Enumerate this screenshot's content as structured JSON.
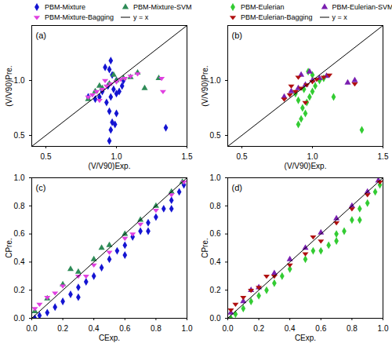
{
  "chart_data": [
    {
      "type": "scatter",
      "title": "(a)",
      "xlabel": "(V/V90)Exp.",
      "ylabel": "(V/V90)Pre.",
      "xlim": [
        0.4,
        1.5
      ],
      "ylim": [
        0.4,
        1.5
      ],
      "xticks": [
        0.5,
        {
          "value": 1.0,
          "label": "1.0"
        },
        1.5
      ],
      "yticks": [
        0.5,
        {
          "value": 1.0,
          "label": "1.0"
        }
      ],
      "legend": "top",
      "series": [
        {
          "name": "PBM-Mixture",
          "type": "scatter",
          "color": "#1414d2",
          "marker": "diamond",
          "x": [
            0.95,
            0.96,
            0.97,
            0.95,
            0.93,
            0.96,
            1.0,
            0.98,
            0.94,
            1.0,
            0.97,
            0.95,
            0.96,
            1.02,
            1.04,
            0.9,
            0.88,
            0.85,
            1.0,
            0.99,
            1.35,
            0.92,
            1.05,
            0.8
          ],
          "values": [
            0.45,
            0.55,
            0.62,
            0.72,
            0.8,
            0.85,
            0.88,
            0.92,
            0.95,
            1.0,
            1.05,
            1.1,
            1.18,
            0.9,
            0.95,
            0.9,
            0.85,
            0.83,
            0.7,
            0.6,
            0.57,
            1.12,
            1.0,
            0.85
          ]
        },
        {
          "name": "PBM-Mixture-SVM",
          "type": "scatter",
          "color": "#2e8b57",
          "marker": "triangle",
          "x": [
            0.85,
            0.9,
            0.95,
            1.0,
            1.05,
            1.1,
            1.15,
            1.3,
            1.2,
            0.8,
            0.88,
            0.98
          ],
          "values": [
            0.9,
            0.93,
            0.97,
            1.0,
            1.02,
            1.03,
            1.07,
            1.02,
            0.93,
            0.83,
            0.95,
            1.05
          ]
        },
        {
          "name": "PBM-Mixture-Bagging",
          "type": "scatter",
          "color": "#e040e0",
          "marker": "triangle-down",
          "x": [
            0.8,
            0.83,
            0.86,
            0.9,
            0.93,
            0.96,
            1.0,
            1.03,
            1.06,
            1.1,
            1.15,
            1.33,
            1.32,
            0.88,
            0.92
          ],
          "values": [
            0.85,
            0.87,
            0.9,
            0.92,
            0.95,
            0.97,
            0.99,
            1.01,
            1.02,
            1.04,
            1.06,
            0.9,
            1.02,
            0.82,
            1.0
          ]
        },
        {
          "name": "y = x",
          "type": "line",
          "color": "#000000",
          "line_style": "solid",
          "x": [
            0.4,
            1.5
          ],
          "values": [
            0.4,
            1.5
          ]
        }
      ]
    },
    {
      "type": "scatter",
      "title": "(b)",
      "xlabel": "(V/V90)Exp.",
      "ylabel": "(V/V90)Pre.",
      "xlim": [
        0.4,
        1.5
      ],
      "ylim": [
        0.4,
        1.5
      ],
      "xticks": [
        0.5,
        {
          "value": 1.0,
          "label": "1.0"
        },
        1.5
      ],
      "yticks": [
        0.5,
        {
          "value": 1.0,
          "label": "1.0"
        }
      ],
      "legend": "top",
      "series": [
        {
          "name": "PBM-Eulerian",
          "type": "scatter",
          "color": "#33cc33",
          "marker": "diamond",
          "x": [
            0.9,
            0.92,
            0.95,
            0.93,
            0.96,
            0.9,
            0.98,
            1.0,
            0.94,
            1.02,
            1.05,
            1.0,
            0.97,
            1.15,
            1.35,
            0.88,
            1.08
          ],
          "values": [
            0.6,
            0.65,
            0.7,
            0.75,
            0.8,
            0.82,
            0.85,
            0.9,
            0.92,
            0.95,
            1.0,
            1.05,
            1.08,
            0.85,
            0.55,
            0.88,
            1.02
          ]
        },
        {
          "name": "PBM-Eulerian-SVM",
          "type": "scatter",
          "color": "#7a1fb0",
          "marker": "triangle",
          "x": [
            0.85,
            0.9,
            0.95,
            1.0,
            1.05,
            1.1,
            1.3,
            1.25,
            0.92,
            0.98,
            0.8
          ],
          "values": [
            0.9,
            0.93,
            0.96,
            1.0,
            1.02,
            1.04,
            1.0,
            0.98,
            1.05,
            1.08,
            0.85
          ]
        },
        {
          "name": "PBM-Eulerian-Bagging",
          "type": "scatter",
          "color": "#b01010",
          "marker": "triangle-down",
          "x": [
            0.8,
            0.84,
            0.88,
            0.92,
            0.96,
            1.0,
            1.03,
            1.08,
            1.12,
            1.3,
            0.95,
            0.9,
            0.85
          ],
          "values": [
            0.83,
            0.87,
            0.9,
            0.93,
            0.96,
            0.99,
            1.01,
            1.03,
            1.05,
            0.97,
            0.8,
            1.03,
            0.95
          ]
        },
        {
          "name": "y = x",
          "type": "line",
          "color": "#000000",
          "line_style": "solid",
          "x": [
            0.4,
            1.5
          ],
          "values": [
            0.4,
            1.5
          ]
        }
      ]
    },
    {
      "type": "scatter",
      "title": "(c)",
      "xlabel": "CExp.",
      "ylabel": "CPre.",
      "xlim": [
        0,
        1
      ],
      "ylim": [
        0,
        1
      ],
      "xticks": [
        {
          "value": 0,
          "label": "0.0"
        },
        0.2,
        0.4,
        0.6,
        0.8,
        {
          "value": 1,
          "label": "1.0"
        }
      ],
      "yticks": [
        {
          "value": 0,
          "label": "0.0"
        },
        0.2,
        0.4,
        0.6,
        0.8,
        {
          "value": 1,
          "label": "1.0"
        }
      ],
      "series": [
        {
          "type": "scatter",
          "color": "#1414d2",
          "marker": "diamond",
          "x": [
            0.02,
            0.05,
            0.1,
            0.15,
            0.2,
            0.25,
            0.3,
            0.35,
            0.4,
            0.45,
            0.5,
            0.55,
            0.6,
            0.65,
            0.7,
            0.75,
            0.8,
            0.85,
            0.9,
            0.95,
            0.98,
            0.3,
            0.6,
            0.9,
            0.75
          ],
          "values": [
            0.0,
            0.02,
            0.04,
            0.08,
            0.12,
            0.17,
            0.22,
            0.26,
            0.3,
            0.36,
            0.42,
            0.48,
            0.52,
            0.58,
            0.62,
            0.68,
            0.72,
            0.78,
            0.84,
            0.9,
            0.95,
            0.15,
            0.45,
            0.78,
            0.62
          ]
        },
        {
          "type": "scatter",
          "color": "#2e8b57",
          "marker": "triangle",
          "x": [
            0.02,
            0.1,
            0.2,
            0.3,
            0.4,
            0.5,
            0.6,
            0.7,
            0.8,
            0.9,
            0.97,
            0.25,
            0.45
          ],
          "values": [
            0.05,
            0.14,
            0.24,
            0.33,
            0.42,
            0.52,
            0.6,
            0.7,
            0.8,
            0.9,
            0.97,
            0.35,
            0.5
          ]
        },
        {
          "type": "scatter",
          "color": "#e040e0",
          "marker": "triangle-down",
          "x": [
            0.02,
            0.05,
            0.1,
            0.15,
            0.2,
            0.3,
            0.4,
            0.5,
            0.6,
            0.7,
            0.8,
            0.9,
            0.98,
            0.35,
            0.65
          ],
          "values": [
            0.07,
            0.1,
            0.15,
            0.18,
            0.23,
            0.3,
            0.38,
            0.47,
            0.57,
            0.67,
            0.77,
            0.88,
            0.97,
            0.3,
            0.6
          ]
        },
        {
          "type": "line",
          "color": "#000000",
          "line_style": "solid",
          "x": [
            0,
            1
          ],
          "values": [
            0,
            1
          ]
        }
      ]
    },
    {
      "type": "scatter",
      "title": "(d)",
      "xlabel": "CExp.",
      "ylabel": "CPre.",
      "xlim": [
        0,
        1
      ],
      "ylim": [
        0,
        1
      ],
      "xticks": [
        {
          "value": 0,
          "label": "0.0"
        },
        0.2,
        0.4,
        0.6,
        0.8,
        {
          "value": 1,
          "label": "1.0"
        }
      ],
      "yticks": [
        {
          "value": 0,
          "label": "0.0"
        },
        0.2,
        0.4,
        0.6,
        0.8,
        {
          "value": 1,
          "label": "1.0"
        }
      ],
      "series": [
        {
          "type": "scatter",
          "color": "#33cc33",
          "marker": "diamond",
          "x": [
            0.02,
            0.05,
            0.1,
            0.15,
            0.2,
            0.25,
            0.3,
            0.35,
            0.4,
            0.5,
            0.55,
            0.6,
            0.65,
            0.7,
            0.75,
            0.8,
            0.85,
            0.9,
            0.95,
            0.98,
            0.7,
            0.85
          ],
          "values": [
            0.0,
            0.03,
            0.07,
            0.12,
            0.16,
            0.2,
            0.25,
            0.3,
            0.35,
            0.42,
            0.48,
            0.48,
            0.52,
            0.55,
            0.62,
            0.7,
            0.78,
            0.82,
            0.9,
            0.95,
            0.6,
            0.7
          ]
        },
        {
          "type": "scatter",
          "color": "#7a1fb0",
          "marker": "triangle",
          "x": [
            0.02,
            0.1,
            0.2,
            0.3,
            0.4,
            0.5,
            0.6,
            0.7,
            0.8,
            0.9,
            0.97,
            0.15
          ],
          "values": [
            0.04,
            0.12,
            0.22,
            0.32,
            0.42,
            0.5,
            0.61,
            0.71,
            0.8,
            0.9,
            0.98,
            0.2
          ]
        },
        {
          "type": "scatter",
          "color": "#b01010",
          "marker": "triangle-down",
          "x": [
            0.02,
            0.05,
            0.1,
            0.15,
            0.2,
            0.3,
            0.4,
            0.5,
            0.6,
            0.7,
            0.8,
            0.9,
            0.98,
            0.55,
            0.25
          ],
          "values": [
            0.06,
            0.1,
            0.15,
            0.2,
            0.22,
            0.3,
            0.38,
            0.46,
            0.55,
            0.68,
            0.78,
            0.88,
            0.97,
            0.58,
            0.3
          ]
        },
        {
          "type": "line",
          "color": "#000000",
          "line_style": "solid",
          "x": [
            0,
            1
          ],
          "values": [
            0,
            1
          ]
        }
      ]
    }
  ]
}
